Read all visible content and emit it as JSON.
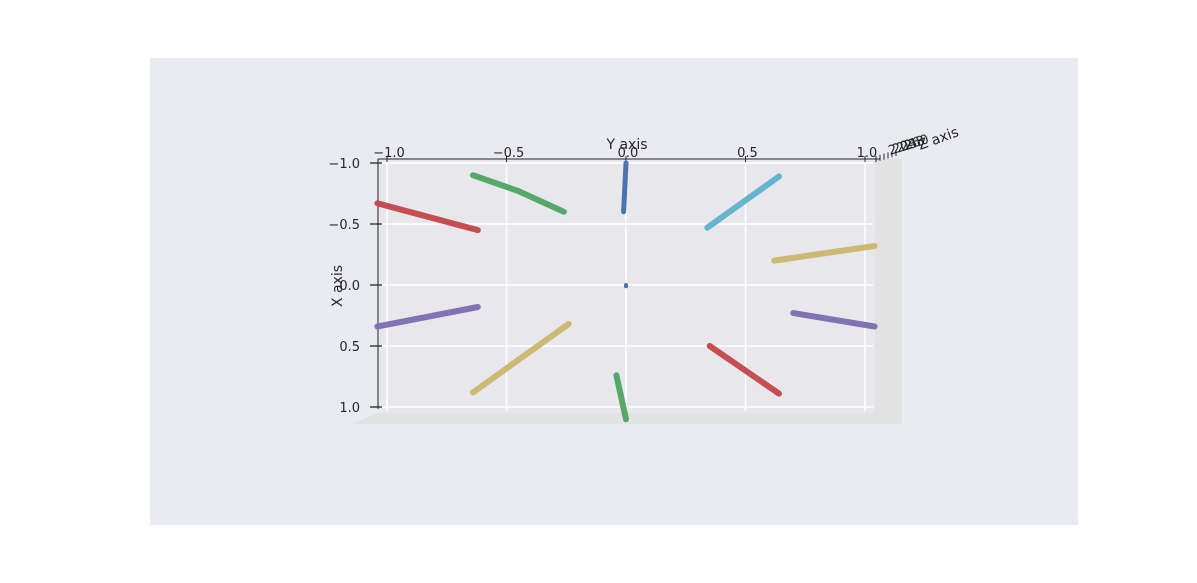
{
  "chart_data": {
    "type": "line",
    "projection": "3d",
    "grid": true,
    "xlabel": "X axis",
    "ylabel": "Y axis",
    "zlabel": "Z axis",
    "xlim": [
      -1.0,
      1.0
    ],
    "ylim": [
      -1.0,
      1.0
    ],
    "x_ticks": [
      "−1.0",
      "−0.5",
      "0.0",
      "0.5",
      "1.0"
    ],
    "y_ticks": [
      "−1.0",
      "−0.5",
      "0.0",
      "0.5",
      "1.0"
    ],
    "z_ticks": [
      "2.0",
      "2.2",
      "2.4",
      "2.6",
      "2.8",
      "3.0"
    ],
    "colors": {
      "figure_bg": "#eaeaf2",
      "pane_back": "#e8e8ec",
      "pane_side": "#e2e2e2",
      "grid": "#ffffff"
    },
    "series": [
      {
        "color": "#4c72b0",
        "points": [
          [
            -1.0,
            0.0
          ],
          [
            -0.6,
            -0.01
          ]
        ],
        "width": 5
      },
      {
        "color": "#4c72b0",
        "points": [
          [
            0.0,
            0.0
          ],
          [
            0.01,
            0.0
          ]
        ],
        "width": 4
      },
      {
        "color": "#55a868",
        "points": [
          [
            -0.9,
            -0.64
          ],
          [
            -0.77,
            -0.45
          ],
          [
            -0.6,
            -0.26
          ]
        ],
        "width": 6
      },
      {
        "color": "#c44e52",
        "points": [
          [
            -0.67,
            -1.04
          ],
          [
            -0.45,
            -0.62
          ]
        ],
        "width": 6
      },
      {
        "color": "#8172b2",
        "points": [
          [
            0.34,
            -1.04
          ],
          [
            0.18,
            -0.62
          ]
        ],
        "width": 6
      },
      {
        "color": "#ccb974",
        "points": [
          [
            0.88,
            -0.64
          ],
          [
            0.32,
            -0.24
          ]
        ],
        "width": 6
      },
      {
        "color": "#55a868",
        "points": [
          [
            0.74,
            -0.04
          ],
          [
            1.1,
            0.0
          ]
        ],
        "width": 6
      },
      {
        "color": "#c44e52",
        "points": [
          [
            0.5,
            0.35
          ],
          [
            0.89,
            0.64
          ]
        ],
        "width": 6
      },
      {
        "color": "#8172b2",
        "points": [
          [
            0.23,
            0.7
          ],
          [
            0.34,
            1.04
          ]
        ],
        "width": 6
      },
      {
        "color": "#ccb974",
        "points": [
          [
            -0.2,
            0.62
          ],
          [
            -0.32,
            1.04
          ]
        ],
        "width": 6
      },
      {
        "color": "#64b5cd",
        "points": [
          [
            -0.47,
            0.34
          ],
          [
            -0.89,
            0.64
          ]
        ],
        "width": 6
      }
    ]
  }
}
